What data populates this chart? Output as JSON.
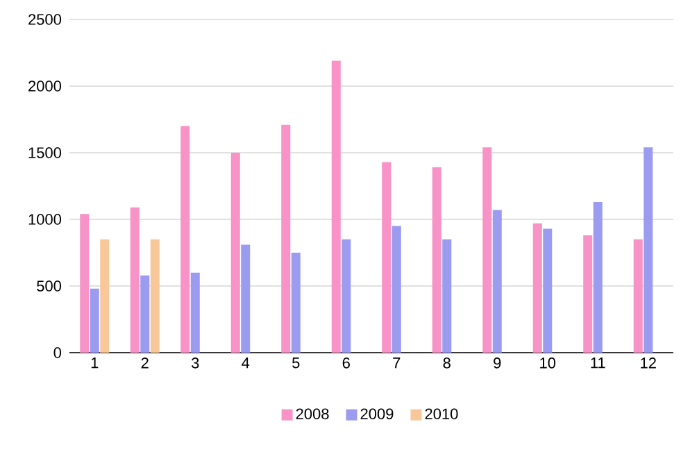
{
  "chart_data": {
    "type": "bar",
    "categories": [
      "1",
      "2",
      "3",
      "4",
      "5",
      "6",
      "7",
      "8",
      "9",
      "10",
      "11",
      "12"
    ],
    "series": [
      {
        "name": "2008",
        "color": "#f793c6",
        "values": [
          1040,
          1090,
          1700,
          1500,
          1710,
          2190,
          1430,
          1390,
          1540,
          970,
          880,
          850
        ]
      },
      {
        "name": "2009",
        "color": "#9b9bf0",
        "values": [
          480,
          580,
          600,
          810,
          750,
          850,
          950,
          850,
          1070,
          930,
          1130,
          1540
        ]
      },
      {
        "name": "2010",
        "color": "#f8c89a",
        "values": [
          850,
          850,
          null,
          null,
          null,
          null,
          null,
          null,
          null,
          null,
          null,
          null
        ]
      }
    ],
    "ylim": [
      0,
      2500
    ],
    "yticks": [
      0,
      500,
      1000,
      1500,
      2000,
      2500
    ],
    "grid": "y",
    "legend": "bottom"
  }
}
